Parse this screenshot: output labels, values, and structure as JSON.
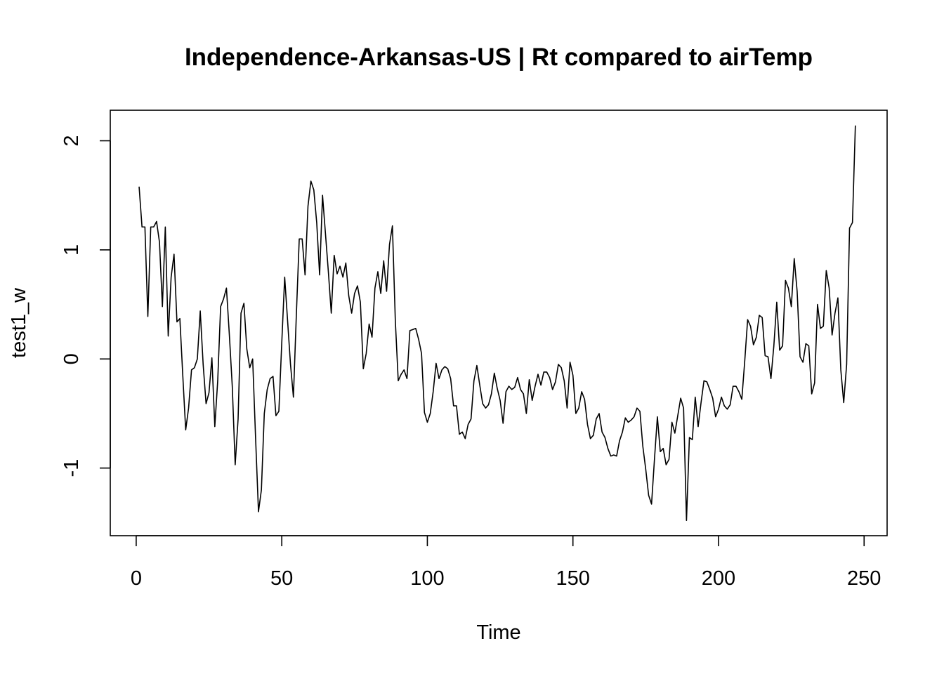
{
  "chart_data": {
    "type": "line",
    "title": "Independence-Arkansas-US | Rt compared to airTemp",
    "xlabel": "Time",
    "ylabel": "test1_w",
    "xlim": [
      -8.9,
      257.9
    ],
    "ylim": [
      -1.62,
      2.28
    ],
    "xticks": [
      0,
      50,
      100,
      150,
      200,
      250
    ],
    "yticks": [
      -1,
      0,
      1,
      2
    ],
    "xtick_labels": [
      "0",
      "50",
      "100",
      "150",
      "200",
      "250"
    ],
    "ytick_labels": [
      "-1",
      "0",
      "1",
      "2"
    ],
    "grid": false,
    "legend": "none",
    "line_color": "#000000",
    "series": [
      {
        "x_start": 1,
        "values": [
          1.58,
          1.21,
          1.21,
          0.39,
          1.21,
          1.21,
          1.26,
          1.07,
          0.48,
          1.21,
          0.21,
          0.75,
          0.96,
          0.34,
          0.37,
          -0.15,
          -0.65,
          -0.45,
          -0.1,
          -0.08,
          0.0,
          0.44,
          -0.05,
          -0.41,
          -0.31,
          0.01,
          -0.62,
          -0.2,
          0.48,
          0.55,
          0.65,
          0.22,
          -0.25,
          -0.97,
          -0.55,
          0.42,
          0.51,
          0.09,
          -0.08,
          0.0,
          -0.72,
          -1.4,
          -1.2,
          -0.5,
          -0.28,
          -0.18,
          -0.16,
          -0.52,
          -0.48,
          0.15,
          0.75,
          0.35,
          -0.05,
          -0.35,
          0.4,
          1.1,
          1.1,
          0.77,
          1.4,
          1.63,
          1.55,
          1.25,
          0.77,
          1.5,
          1.15,
          0.8,
          0.42,
          0.95,
          0.78,
          0.85,
          0.75,
          0.88,
          0.58,
          0.42,
          0.6,
          0.67,
          0.52,
          -0.09,
          0.05,
          0.32,
          0.2,
          0.65,
          0.8,
          0.6,
          0.9,
          0.62,
          1.05,
          1.22,
          0.35,
          -0.2,
          -0.14,
          -0.1,
          -0.18,
          0.26,
          0.27,
          0.28,
          0.18,
          0.05,
          -0.49,
          -0.58,
          -0.5,
          -0.3,
          -0.04,
          -0.18,
          -0.1,
          -0.07,
          -0.09,
          -0.18,
          -0.43,
          -0.43,
          -0.69,
          -0.67,
          -0.73,
          -0.6,
          -0.55,
          -0.2,
          -0.06,
          -0.24,
          -0.41,
          -0.45,
          -0.42,
          -0.32,
          -0.13,
          -0.27,
          -0.38,
          -0.59,
          -0.3,
          -0.25,
          -0.28,
          -0.26,
          -0.17,
          -0.28,
          -0.32,
          -0.5,
          -0.19,
          -0.38,
          -0.25,
          -0.14,
          -0.24,
          -0.12,
          -0.12,
          -0.17,
          -0.28,
          -0.21,
          -0.05,
          -0.08,
          -0.2,
          -0.45,
          -0.03,
          -0.15,
          -0.5,
          -0.45,
          -0.3,
          -0.37,
          -0.6,
          -0.73,
          -0.7,
          -0.55,
          -0.5,
          -0.67,
          -0.72,
          -0.82,
          -0.89,
          -0.88,
          -0.89,
          -0.75,
          -0.67,
          -0.54,
          -0.58,
          -0.56,
          -0.53,
          -0.45,
          -0.48,
          -0.8,
          -1.01,
          -1.25,
          -1.33,
          -0.92,
          -0.53,
          -0.85,
          -0.82,
          -0.97,
          -0.92,
          -0.58,
          -0.68,
          -0.52,
          -0.36,
          -0.45,
          -1.48,
          -0.72,
          -0.74,
          -0.35,
          -0.62,
          -0.4,
          -0.2,
          -0.21,
          -0.28,
          -0.36,
          -0.53,
          -0.46,
          -0.35,
          -0.43,
          -0.46,
          -0.42,
          -0.25,
          -0.25,
          -0.3,
          -0.37,
          -0.02,
          0.36,
          0.3,
          0.13,
          0.2,
          0.4,
          0.38,
          0.03,
          0.02,
          -0.18,
          0.12,
          0.52,
          0.08,
          0.12,
          0.72,
          0.65,
          0.48,
          0.92,
          0.62,
          0.02,
          -0.03,
          0.14,
          0.12,
          -0.32,
          -0.22,
          0.5,
          0.28,
          0.3,
          0.81,
          0.65,
          0.22,
          0.42,
          0.56,
          -0.1,
          -0.4,
          -0.05,
          1.2,
          1.25,
          2.14
        ]
      }
    ]
  }
}
